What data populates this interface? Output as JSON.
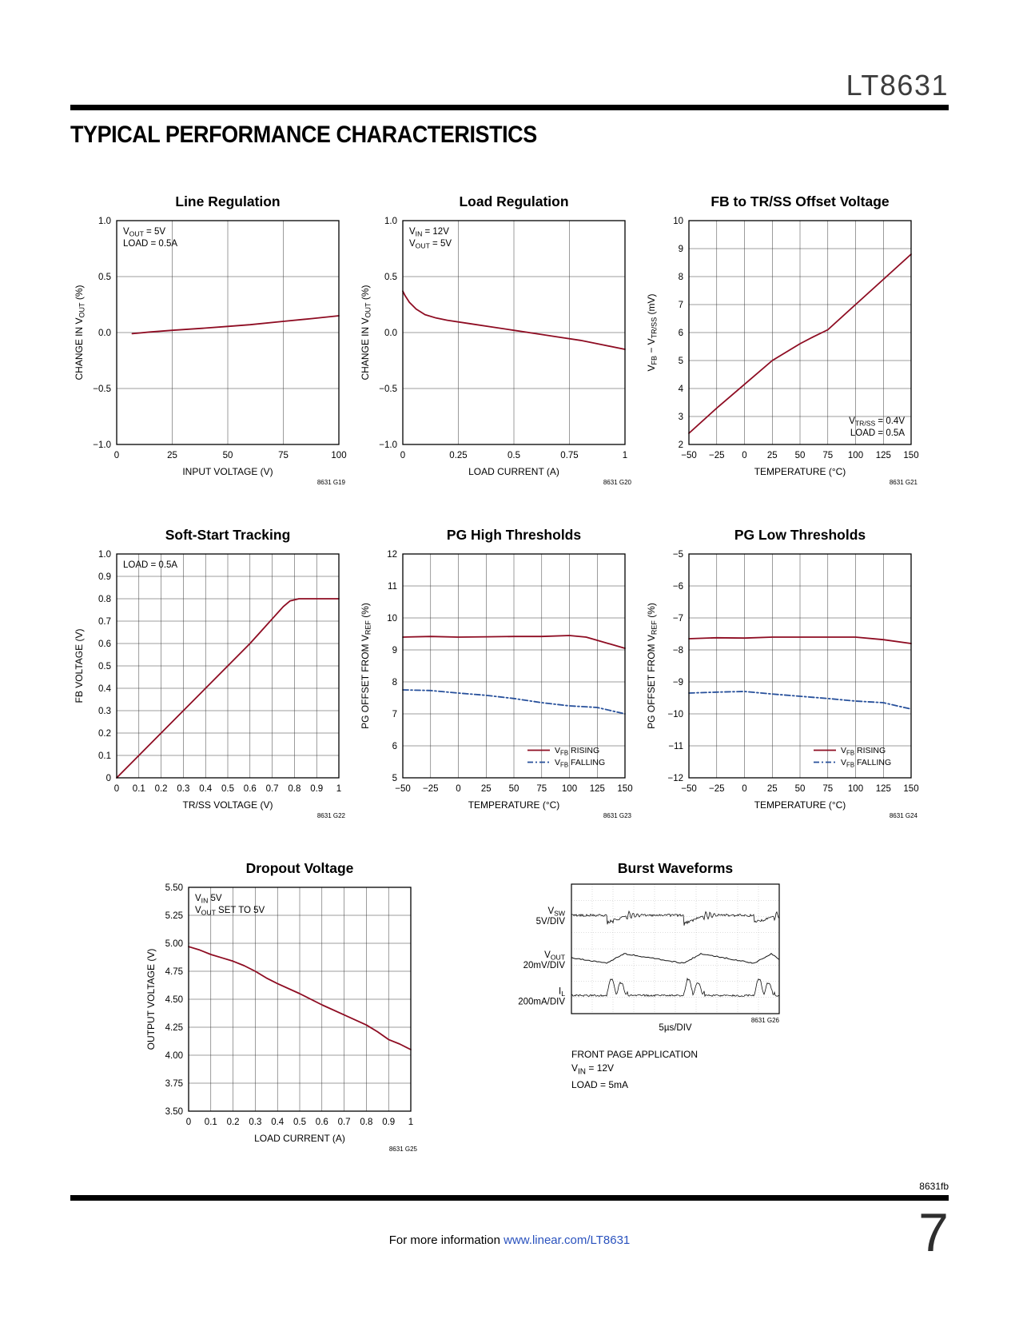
{
  "page": {
    "doc_number": "LT8631",
    "section_title": "TYPICAL PERFORMANCE CHARACTERISTICS",
    "footer_code": "8631fb",
    "page_number": "7",
    "footer_info_prefix": "For more information ",
    "footer_link": "www.linear.com/LT8631"
  },
  "colors": {
    "trace_red": "#8e0c22",
    "trace_blue": "#27509b",
    "scope_black": "#111111",
    "link_blue": "#2a52be",
    "grid": "#3a3a3a"
  },
  "chart_data": [
    {
      "type": "line",
      "title": "Line Regulation",
      "code": "8631 G19",
      "xlabel": "INPUT VOLTAGE (V)",
      "ylabel": "CHANGE IN V_{OUT} (%)",
      "xlim": [
        0,
        100
      ],
      "ylim": [
        -1,
        1
      ],
      "xticks": [
        0,
        25,
        50,
        75,
        100
      ],
      "xtick_labels": [
        "0",
        "25",
        "50",
        "75",
        "100"
      ],
      "yticks": [
        -1,
        -0.5,
        0,
        0.5,
        1
      ],
      "ytick_labels": [
        "−1.0",
        "−0.5",
        "0.0",
        "0.5",
        "1.0"
      ],
      "annotation": {
        "pos": "top-left",
        "lines": [
          "V_{OUT} = 5V",
          "LOAD = 0.5A"
        ]
      },
      "series": [
        {
          "name": "",
          "color": "red",
          "dash": "solid",
          "points": [
            [
              7,
              -0.01
            ],
            [
              15,
              0.005
            ],
            [
              25,
              0.02
            ],
            [
              40,
              0.04
            ],
            [
              50,
              0.055
            ],
            [
              60,
              0.07
            ],
            [
              75,
              0.1
            ],
            [
              88,
              0.125
            ],
            [
              100,
              0.15
            ]
          ]
        }
      ]
    },
    {
      "type": "line",
      "title": "Load Regulation",
      "code": "8631 G20",
      "xlabel": "LOAD CURRENT (A)",
      "ylabel": "CHANGE IN V_{OUT} (%)",
      "xlim": [
        0,
        1
      ],
      "ylim": [
        -1,
        1
      ],
      "xticks": [
        0,
        0.25,
        0.5,
        0.75,
        1
      ],
      "xtick_labels": [
        "0",
        "0.25",
        "0.5",
        "0.75",
        "1"
      ],
      "yticks": [
        -1,
        -0.5,
        0,
        0.5,
        1
      ],
      "ytick_labels": [
        "−1.0",
        "−0.5",
        "0.0",
        "0.5",
        "1.0"
      ],
      "annotation": {
        "pos": "top-left",
        "lines": [
          "V_{IN} = 12V",
          "V_{OUT} = 5V"
        ]
      },
      "series": [
        {
          "name": "",
          "color": "red",
          "dash": "solid",
          "points": [
            [
              0,
              0.37
            ],
            [
              0.01,
              0.33
            ],
            [
              0.03,
              0.27
            ],
            [
              0.06,
              0.21
            ],
            [
              0.1,
              0.16
            ],
            [
              0.15,
              0.13
            ],
            [
              0.2,
              0.11
            ],
            [
              0.3,
              0.08
            ],
            [
              0.4,
              0.05
            ],
            [
              0.5,
              0.02
            ],
            [
              0.6,
              -0.01
            ],
            [
              0.7,
              -0.04
            ],
            [
              0.8,
              -0.07
            ],
            [
              0.9,
              -0.11
            ],
            [
              1,
              -0.15
            ]
          ]
        }
      ]
    },
    {
      "type": "line",
      "title": "FB to TR/SS Offset Voltage",
      "code": "8631 G21",
      "xlabel": "TEMPERATURE (°C)",
      "ylabel": "V_{FB} − V_{TR/SS} (mV)",
      "xlim": [
        -50,
        150
      ],
      "ylim": [
        2,
        10
      ],
      "xticks": [
        -50,
        -25,
        0,
        25,
        50,
        75,
        100,
        125,
        150
      ],
      "xtick_labels": [
        "−50",
        "−25",
        "0",
        "25",
        "50",
        "75",
        "100",
        "125",
        "150"
      ],
      "yticks": [
        2,
        3,
        4,
        5,
        6,
        7,
        8,
        9,
        10
      ],
      "ytick_labels": [
        "2",
        "3",
        "4",
        "5",
        "6",
        "7",
        "8",
        "9",
        "10"
      ],
      "annotation": {
        "pos": "bottom-right",
        "lines": [
          "V_{TR/SS} = 0.4V",
          "LOAD = 0.5A"
        ]
      },
      "series": [
        {
          "name": "",
          "color": "red",
          "dash": "solid",
          "points": [
            [
              -50,
              2.4
            ],
            [
              -25,
              3.3
            ],
            [
              0,
              4.15
            ],
            [
              25,
              5.0
            ],
            [
              50,
              5.6
            ],
            [
              62,
              5.85
            ],
            [
              75,
              6.1
            ],
            [
              100,
              7.0
            ],
            [
              125,
              7.9
            ],
            [
              150,
              8.8
            ]
          ]
        }
      ]
    },
    {
      "type": "line",
      "title": "Soft-Start Tracking",
      "code": "8631 G22",
      "xlabel": "TR/SS VOLTAGE (V)",
      "ylabel": "FB VOLTAGE (V)",
      "xlim": [
        0,
        1
      ],
      "ylim": [
        0,
        1
      ],
      "xticks": [
        0,
        0.1,
        0.2,
        0.3,
        0.4,
        0.5,
        0.6,
        0.7,
        0.8,
        0.9,
        1
      ],
      "xtick_labels": [
        "0",
        "0.1",
        "0.2",
        "0.3",
        "0.4",
        "0.5",
        "0.6",
        "0.7",
        "0.8",
        "0.9",
        "1"
      ],
      "yticks": [
        0,
        0.1,
        0.2,
        0.3,
        0.4,
        0.5,
        0.6,
        0.7,
        0.8,
        0.9,
        1
      ],
      "ytick_labels": [
        "0",
        "0.1",
        "0.2",
        "0.3",
        "0.4",
        "0.5",
        "0.6",
        "0.7",
        "0.8",
        "0.9",
        "1.0"
      ],
      "annotation": {
        "pos": "top-left",
        "lines": [
          "LOAD = 0.5A"
        ]
      },
      "series": [
        {
          "name": "",
          "color": "red",
          "dash": "solid",
          "points": [
            [
              0,
              0
            ],
            [
              0.1,
              0.1
            ],
            [
              0.2,
              0.2
            ],
            [
              0.3,
              0.3
            ],
            [
              0.4,
              0.4
            ],
            [
              0.5,
              0.5
            ],
            [
              0.6,
              0.6
            ],
            [
              0.65,
              0.655
            ],
            [
              0.7,
              0.71
            ],
            [
              0.75,
              0.765
            ],
            [
              0.78,
              0.79
            ],
            [
              0.82,
              0.8
            ],
            [
              0.9,
              0.8
            ],
            [
              1,
              0.8
            ]
          ]
        }
      ]
    },
    {
      "type": "line",
      "title": "PG High Thresholds",
      "code": "8631 G23",
      "xlabel": "TEMPERATURE (°C)",
      "ylabel": "PG OFFSET FROM V_{REF} (%)",
      "xlim": [
        -50,
        150
      ],
      "ylim": [
        5,
        12
      ],
      "xticks": [
        -50,
        -25,
        0,
        25,
        50,
        75,
        100,
        125,
        150
      ],
      "xtick_labels": [
        "−50",
        "−25",
        "0",
        "25",
        "50",
        "75",
        "100",
        "125",
        "150"
      ],
      "yticks": [
        5,
        6,
        7,
        8,
        9,
        10,
        11,
        12
      ],
      "ytick_labels": [
        "5",
        "6",
        "7",
        "8",
        "9",
        "10",
        "11",
        "12"
      ],
      "legend": [
        {
          "label": "V_{FB} RISING",
          "color": "red",
          "dash": "solid"
        },
        {
          "label": "V_{FB} FALLING",
          "color": "blue",
          "dash": "dash"
        }
      ],
      "series": [
        {
          "name": "V_{FB} RISING",
          "color": "red",
          "dash": "solid",
          "points": [
            [
              -50,
              9.4
            ],
            [
              -25,
              9.42
            ],
            [
              0,
              9.4
            ],
            [
              25,
              9.41
            ],
            [
              50,
              9.42
            ],
            [
              75,
              9.42
            ],
            [
              100,
              9.45
            ],
            [
              115,
              9.4
            ],
            [
              125,
              9.3
            ],
            [
              150,
              9.05
            ]
          ]
        },
        {
          "name": "V_{FB} FALLING",
          "color": "blue",
          "dash": "dash",
          "points": [
            [
              -50,
              7.75
            ],
            [
              -25,
              7.73
            ],
            [
              0,
              7.65
            ],
            [
              25,
              7.58
            ],
            [
              50,
              7.48
            ],
            [
              75,
              7.35
            ],
            [
              100,
              7.25
            ],
            [
              125,
              7.2
            ],
            [
              150,
              7.0
            ]
          ]
        }
      ]
    },
    {
      "type": "line",
      "title": "PG Low Thresholds",
      "code": "8631 G24",
      "xlabel": "TEMPERATURE (°C)",
      "ylabel": "PG OFFSET FROM V_{REF} (%)",
      "xlim": [
        -50,
        150
      ],
      "ylim": [
        -12,
        -5
      ],
      "xticks": [
        -50,
        -25,
        0,
        25,
        50,
        75,
        100,
        125,
        150
      ],
      "xtick_labels": [
        "−50",
        "−25",
        "0",
        "25",
        "50",
        "75",
        "100",
        "125",
        "150"
      ],
      "yticks": [
        -12,
        -11,
        -10,
        -9,
        -8,
        -7,
        -6,
        -5
      ],
      "ytick_labels": [
        "−12",
        "−11",
        "−10",
        "−9",
        "−8",
        "−7",
        "−6",
        "−5"
      ],
      "legend": [
        {
          "label": "V_{FB} RISING",
          "color": "red",
          "dash": "solid"
        },
        {
          "label": "V_{FB} FALLING",
          "color": "blue",
          "dash": "dash"
        }
      ],
      "series": [
        {
          "name": "V_{FB} RISING",
          "color": "red",
          "dash": "solid",
          "points": [
            [
              -50,
              -7.65
            ],
            [
              -25,
              -7.62
            ],
            [
              0,
              -7.63
            ],
            [
              25,
              -7.6
            ],
            [
              50,
              -7.6
            ],
            [
              75,
              -7.6
            ],
            [
              100,
              -7.6
            ],
            [
              125,
              -7.68
            ],
            [
              150,
              -7.8
            ]
          ]
        },
        {
          "name": "V_{FB} FALLING",
          "color": "blue",
          "dash": "dash",
          "points": [
            [
              -50,
              -9.35
            ],
            [
              -25,
              -9.32
            ],
            [
              0,
              -9.3
            ],
            [
              25,
              -9.38
            ],
            [
              50,
              -9.45
            ],
            [
              75,
              -9.52
            ],
            [
              100,
              -9.6
            ],
            [
              125,
              -9.65
            ],
            [
              150,
              -9.85
            ]
          ]
        }
      ]
    },
    {
      "type": "line",
      "title": "Dropout Voltage",
      "code": "8631 G25",
      "xlabel": "LOAD CURRENT (A)",
      "ylabel": "OUTPUT VOLTAGE (V)",
      "xlim": [
        0,
        1
      ],
      "ylim": [
        3.5,
        5.5
      ],
      "xticks": [
        0,
        0.1,
        0.2,
        0.3,
        0.4,
        0.5,
        0.6,
        0.7,
        0.8,
        0.9,
        1
      ],
      "xtick_labels": [
        "0",
        "0.1",
        "0.2",
        "0.3",
        "0.4",
        "0.5",
        "0.6",
        "0.7",
        "0.8",
        "0.9",
        "1"
      ],
      "yticks": [
        3.5,
        3.75,
        4,
        4.25,
        4.5,
        4.75,
        5,
        5.25,
        5.5
      ],
      "ytick_labels": [
        "3.50",
        "3.75",
        "4.00",
        "4.25",
        "4.50",
        "4.75",
        "5.00",
        "5.25",
        "5.50"
      ],
      "annotation": {
        "pos": "top-left",
        "lines": [
          "V_{IN} 5V",
          "V_{OUT} SET TO 5V"
        ]
      },
      "series": [
        {
          "name": "",
          "color": "red",
          "dash": "solid",
          "points": [
            [
              0,
              4.97
            ],
            [
              0.05,
              4.94
            ],
            [
              0.1,
              4.9
            ],
            [
              0.15,
              4.87
            ],
            [
              0.2,
              4.84
            ],
            [
              0.25,
              4.8
            ],
            [
              0.3,
              4.75
            ],
            [
              0.35,
              4.69
            ],
            [
              0.4,
              4.64
            ],
            [
              0.5,
              4.55
            ],
            [
              0.6,
              4.45
            ],
            [
              0.7,
              4.36
            ],
            [
              0.8,
              4.27
            ],
            [
              0.85,
              4.21
            ],
            [
              0.9,
              4.14
            ],
            [
              0.95,
              4.1
            ],
            [
              1,
              4.05
            ]
          ]
        }
      ]
    },
    {
      "type": "scope",
      "title": "Burst Waveforms",
      "code": "8631 G26",
      "xlabel": "5µs/DIV",
      "traces": [
        {
          "label": "V_{SW}",
          "scale": "5V/DIV"
        },
        {
          "label": "V_{OUT}",
          "scale": "20mV/DIV"
        },
        {
          "label": "I_{L}",
          "scale": "200mA/DIV"
        }
      ],
      "burst_positions": [
        0.17,
        0.54,
        0.88
      ],
      "notes": [
        "FRONT PAGE APPLICATION",
        "V_{IN} = 12V",
        "LOAD = 5mA"
      ]
    }
  ]
}
